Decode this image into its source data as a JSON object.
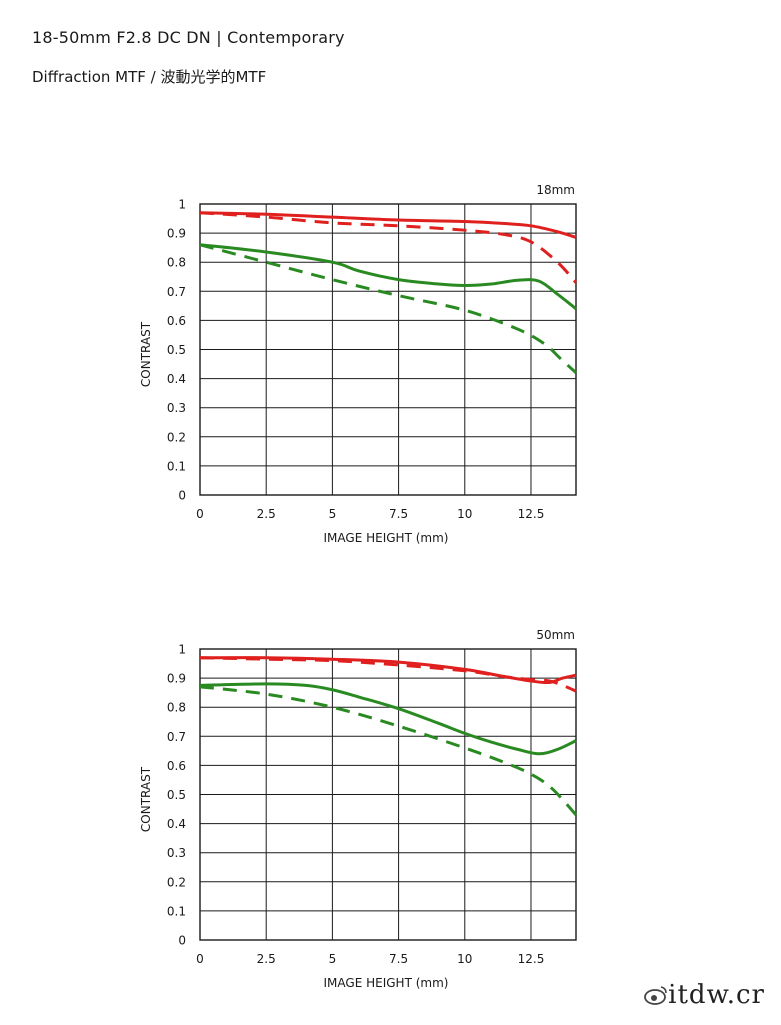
{
  "page": {
    "title": "18-50mm F2.8 DC DN | Contemporary",
    "subtitle": "Diffraction MTF / 波動光学的MTF",
    "watermark": "itdw.cr"
  },
  "colors": {
    "red": "#e0201e",
    "green": "#2a8a22",
    "grid": "#1a1a1a"
  },
  "chart_data": [
    {
      "type": "line",
      "title": "18mm",
      "xlabel": "IMAGE HEIGHT (mm)",
      "ylabel": "CONTRAST",
      "xlim": [
        0,
        14.2
      ],
      "ylim": [
        0,
        1
      ],
      "xticks": [
        0,
        2.5,
        5,
        7.5,
        10,
        12.5
      ],
      "xtick_labels": [
        "0",
        "2.5",
        "5",
        "7.5",
        "10",
        "12.5"
      ],
      "yticks": [
        0,
        0.1,
        0.2,
        0.3,
        0.4,
        0.5,
        0.6,
        0.7,
        0.8,
        0.9,
        1
      ],
      "ytick_labels": [
        "0",
        "0.1",
        "0.2",
        "0.3",
        "0.4",
        "0.5",
        "0.6",
        "0.7",
        "0.8",
        "0.9",
        "1"
      ],
      "grid": true,
      "series": [
        {
          "color": "red",
          "style": "solid",
          "x": [
            0,
            2.5,
            5,
            7.5,
            10,
            11.5,
            12.5,
            13.5,
            14.2
          ],
          "y": [
            0.97,
            0.965,
            0.955,
            0.945,
            0.94,
            0.933,
            0.925,
            0.905,
            0.885
          ]
        },
        {
          "color": "red",
          "style": "dashed",
          "x": [
            0,
            2.5,
            5,
            7.5,
            10,
            11.5,
            12.5,
            13.5,
            14.2
          ],
          "y": [
            0.97,
            0.955,
            0.935,
            0.925,
            0.91,
            0.895,
            0.87,
            0.8,
            0.73
          ]
        },
        {
          "color": "green",
          "style": "solid",
          "x": [
            0,
            2.5,
            5,
            6,
            7.5,
            9,
            10,
            11,
            12,
            12.8,
            13.5,
            14.2
          ],
          "y": [
            0.86,
            0.835,
            0.8,
            0.77,
            0.74,
            0.725,
            0.72,
            0.725,
            0.738,
            0.735,
            0.69,
            0.64
          ]
        },
        {
          "color": "green",
          "style": "dashed",
          "x": [
            0,
            2.5,
            5,
            7.5,
            10,
            12,
            13,
            13.6,
            14.2
          ],
          "y": [
            0.86,
            0.8,
            0.74,
            0.685,
            0.635,
            0.57,
            0.52,
            0.47,
            0.42
          ]
        }
      ]
    },
    {
      "type": "line",
      "title": "50mm",
      "xlabel": "IMAGE HEIGHT (mm)",
      "ylabel": "CONTRAST",
      "xlim": [
        0,
        14.2
      ],
      "ylim": [
        0,
        1
      ],
      "xticks": [
        0,
        2.5,
        5,
        7.5,
        10,
        12.5
      ],
      "xtick_labels": [
        "0",
        "2.5",
        "5",
        "7.5",
        "10",
        "12.5"
      ],
      "yticks": [
        0,
        0.1,
        0.2,
        0.3,
        0.4,
        0.5,
        0.6,
        0.7,
        0.8,
        0.9,
        1
      ],
      "ytick_labels": [
        "0",
        "0.1",
        "0.2",
        "0.3",
        "0.4",
        "0.5",
        "0.6",
        "0.7",
        "0.8",
        "0.9",
        "1"
      ],
      "grid": true,
      "series": [
        {
          "color": "red",
          "style": "solid",
          "x": [
            0,
            2.5,
            5,
            7.5,
            10,
            11.5,
            12.5,
            13.2,
            13.7,
            14.2
          ],
          "y": [
            0.97,
            0.97,
            0.965,
            0.955,
            0.93,
            0.905,
            0.89,
            0.885,
            0.9,
            0.91
          ]
        },
        {
          "color": "red",
          "style": "dashed",
          "x": [
            0,
            2.5,
            5,
            7.5,
            10,
            11.5,
            12.5,
            13.2,
            13.7,
            14.2
          ],
          "y": [
            0.97,
            0.965,
            0.96,
            0.945,
            0.925,
            0.905,
            0.895,
            0.89,
            0.875,
            0.855
          ]
        },
        {
          "color": "green",
          "style": "solid",
          "x": [
            0,
            2.5,
            4,
            5,
            6,
            7.5,
            9,
            10,
            11,
            12,
            12.8,
            13.5,
            14.2
          ],
          "y": [
            0.875,
            0.88,
            0.875,
            0.86,
            0.835,
            0.795,
            0.745,
            0.71,
            0.68,
            0.655,
            0.64,
            0.655,
            0.685
          ]
        },
        {
          "color": "green",
          "style": "dashed",
          "x": [
            0,
            2.5,
            5,
            7.5,
            10,
            11.5,
            12.5,
            13.3,
            14.2
          ],
          "y": [
            0.87,
            0.845,
            0.8,
            0.735,
            0.66,
            0.61,
            0.57,
            0.52,
            0.43
          ]
        }
      ]
    }
  ]
}
